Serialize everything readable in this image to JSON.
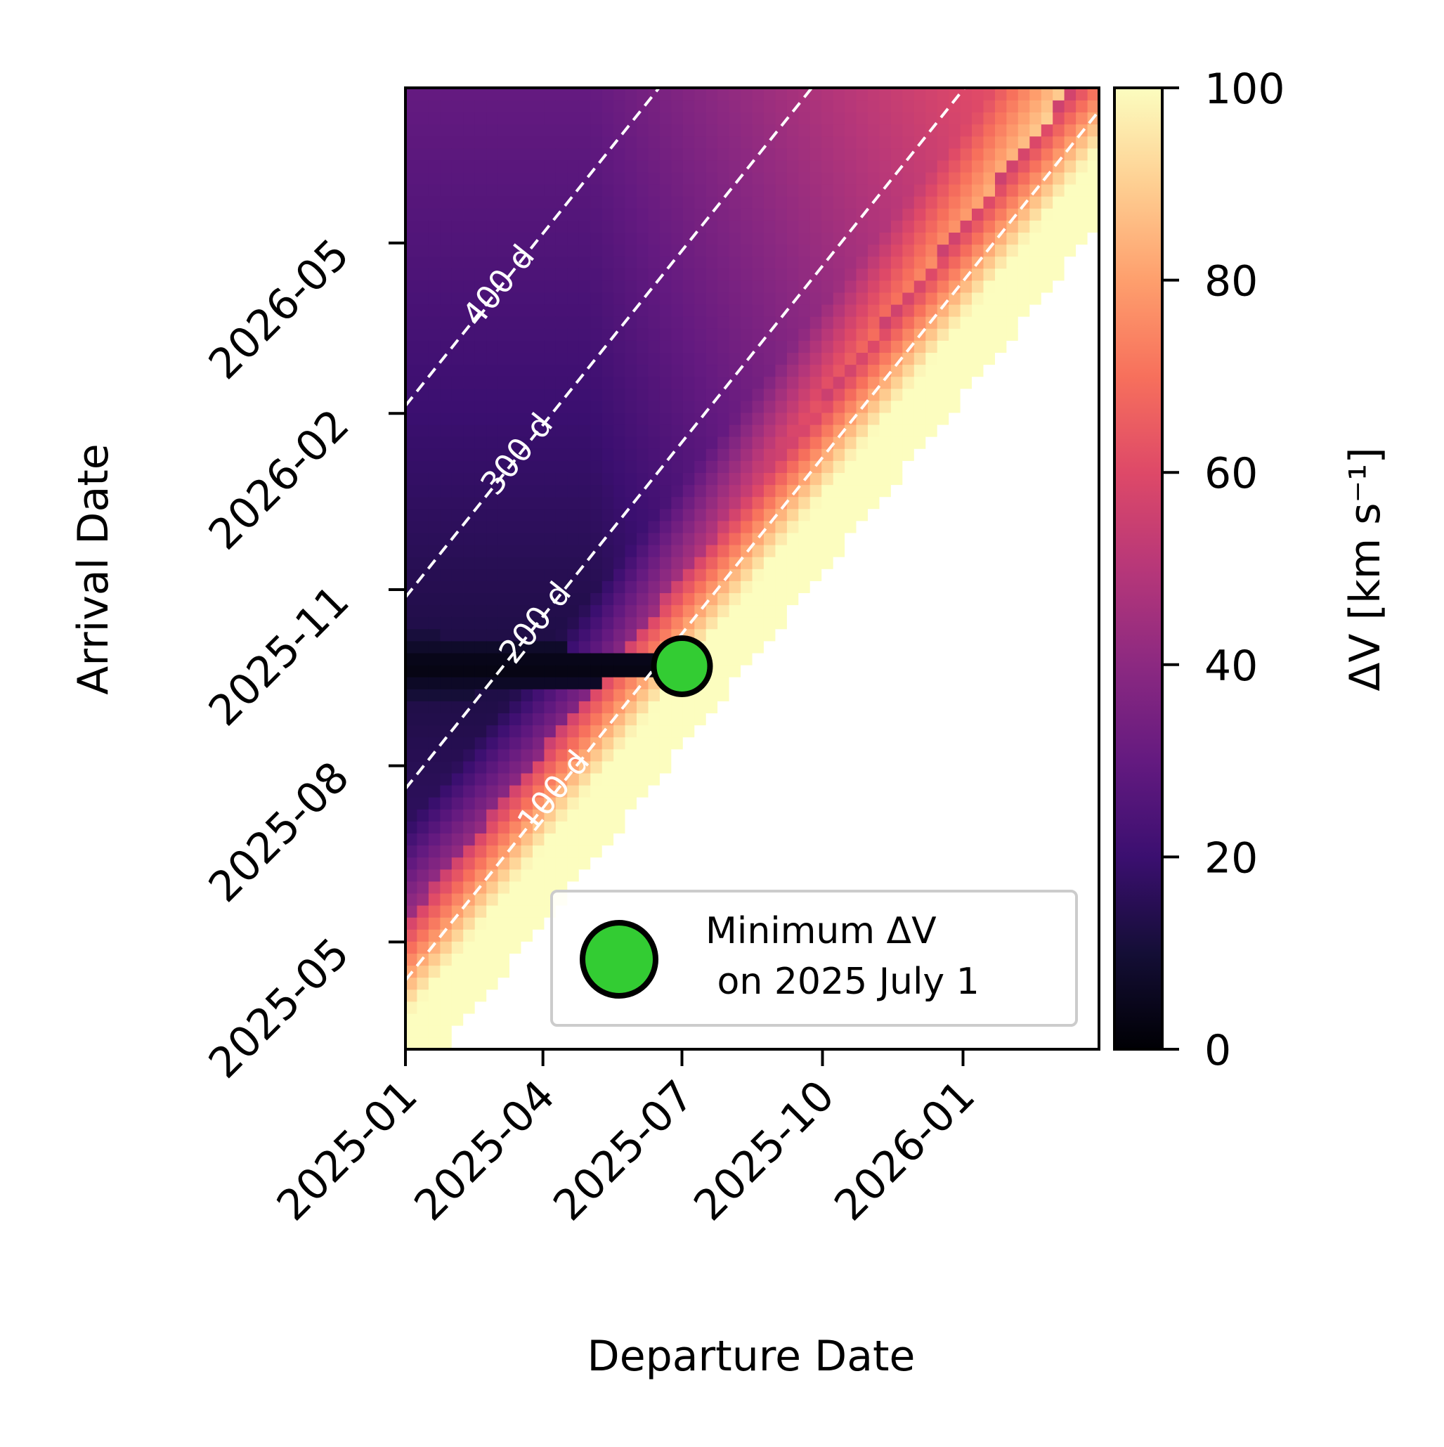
{
  "chart_data": {
    "type": "heatmap",
    "title": "",
    "xlabel": "Departure Date",
    "ylabel": "Arrival Date",
    "x_range": [
      "2025-01-01",
      "2026-03-31"
    ],
    "y_range": [
      "2025-03-06",
      "2026-07-21"
    ],
    "x_ticks": [
      "2025-01",
      "2025-04",
      "2025-07",
      "2025-10",
      "2026-01"
    ],
    "y_ticks": [
      "2025-05",
      "2025-08",
      "2025-11",
      "2026-02",
      "2026-05"
    ],
    "colorbar": {
      "label": "ΔV [km  s⁻¹]",
      "range": [
        0,
        100
      ],
      "ticks": [
        "0",
        "20",
        "40",
        "60",
        "80",
        "100"
      ],
      "colormap": "magma"
    },
    "time_of_flight_contours": [
      {
        "label": "100 d",
        "days": 100
      },
      {
        "label": "200 d",
        "days": 200
      },
      {
        "label": "300 d",
        "days": 300
      },
      {
        "label": "400 d",
        "days": 400
      }
    ],
    "minimum": {
      "departure": "2025-07-01",
      "arrival": "2025-09-22",
      "legend_label_line1": "Minimum ΔV",
      "legend_label_line2": " on 2025 July 1",
      "color": "#33cc33"
    },
    "no_solution_region_color": "#ffffff",
    "saturation_color": "#fcfdbf"
  }
}
